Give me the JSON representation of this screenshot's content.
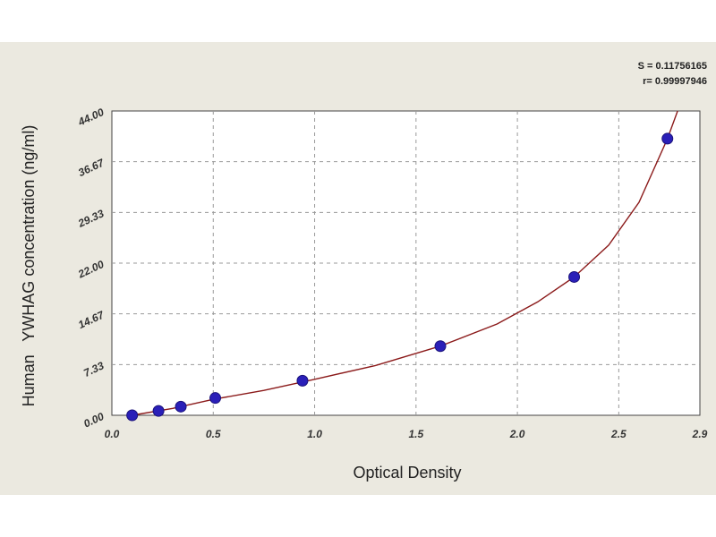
{
  "chart_data": {
    "type": "scatter",
    "title": "",
    "xlabel": "Optical Density",
    "ylabel": "Human   YWHAG concentration (ng/ml)",
    "xlim": [
      0.0,
      2.9
    ],
    "ylim": [
      0.0,
      44.0
    ],
    "x_ticks": [
      "0.0",
      "0.5",
      "1.0",
      "1.5",
      "2.0",
      "2.5",
      "2.9"
    ],
    "x_tick_values": [
      0.0,
      0.5,
      1.0,
      1.5,
      2.0,
      2.5,
      2.9
    ],
    "y_ticks": [
      "0.00",
      "7.33",
      "14.67",
      "22.00",
      "29.33",
      "36.67",
      "44.00"
    ],
    "y_tick_values": [
      0.0,
      7.33,
      14.67,
      22.0,
      29.33,
      36.67,
      44.0
    ],
    "grid": true,
    "stats": [
      "S = 0.11756165",
      "r= 0.99997946"
    ],
    "series": [
      {
        "points": [
          {
            "x": 0.1,
            "y": 0.0
          },
          {
            "x": 0.23,
            "y": 0.63
          },
          {
            "x": 0.34,
            "y": 1.25
          },
          {
            "x": 0.51,
            "y": 2.5
          },
          {
            "x": 0.94,
            "y": 5.0
          },
          {
            "x": 1.62,
            "y": 10.0
          },
          {
            "x": 2.28,
            "y": 20.0
          },
          {
            "x": 2.74,
            "y": 40.0
          }
        ],
        "color": "#2a1fb8"
      }
    ],
    "fit_curve": {
      "color": "#8b1a1a",
      "points": [
        {
          "x": 0.1,
          "y": 0.0
        },
        {
          "x": 0.3,
          "y": 1.0
        },
        {
          "x": 0.5,
          "y": 2.3
        },
        {
          "x": 0.75,
          "y": 3.6
        },
        {
          "x": 1.0,
          "y": 5.2
        },
        {
          "x": 1.3,
          "y": 7.2
        },
        {
          "x": 1.62,
          "y": 10.0
        },
        {
          "x": 1.9,
          "y": 13.2
        },
        {
          "x": 2.1,
          "y": 16.4
        },
        {
          "x": 2.28,
          "y": 20.0
        },
        {
          "x": 2.45,
          "y": 24.6
        },
        {
          "x": 2.6,
          "y": 30.8
        },
        {
          "x": 2.74,
          "y": 40.0
        },
        {
          "x": 2.79,
          "y": 44.0
        }
      ]
    }
  }
}
